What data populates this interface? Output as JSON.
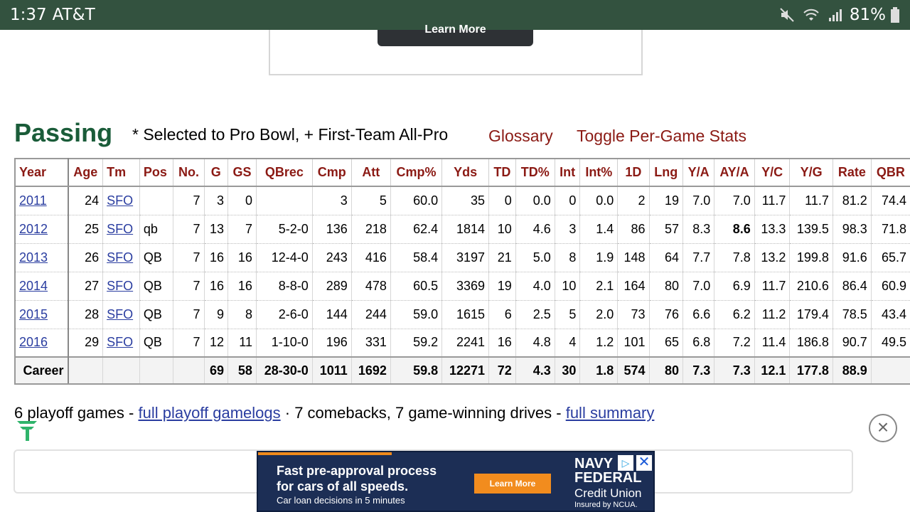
{
  "status_bar": {
    "time": "1:37",
    "carrier": "AT&T",
    "battery": "81%"
  },
  "top_ad": {
    "button_label": "Learn More"
  },
  "section": {
    "title": "Passing",
    "note": "* Selected to Pro Bowl, + First-Team All-Pro",
    "glossary": "Glossary",
    "toggle": "Toggle Per-Game Stats"
  },
  "table": {
    "headers": [
      "Year",
      "Age",
      "Tm",
      "Pos",
      "No.",
      "G",
      "GS",
      "QBrec",
      "Cmp",
      "Att",
      "Cmp%",
      "Yds",
      "TD",
      "TD%",
      "Int",
      "Int%",
      "1D",
      "Lng",
      "Y/A",
      "AY/A",
      "Y/C",
      "Y/G",
      "Rate",
      "QBR"
    ],
    "rows": [
      [
        "2011",
        "24",
        "SFO",
        "",
        "7",
        "3",
        "0",
        "",
        "3",
        "5",
        "60.0",
        "35",
        "0",
        "0.0",
        "0",
        "0.0",
        "2",
        "19",
        "7.0",
        "7.0",
        "11.7",
        "11.7",
        "81.2",
        "74.4"
      ],
      [
        "2012",
        "25",
        "SFO",
        "qb",
        "7",
        "13",
        "7",
        "5-2-0",
        "136",
        "218",
        "62.4",
        "1814",
        "10",
        "4.6",
        "3",
        "1.4",
        "86",
        "57",
        "8.3",
        "8.6",
        "13.3",
        "139.5",
        "98.3",
        "71.8"
      ],
      [
        "2013",
        "26",
        "SFO",
        "QB",
        "7",
        "16",
        "16",
        "12-4-0",
        "243",
        "416",
        "58.4",
        "3197",
        "21",
        "5.0",
        "8",
        "1.9",
        "148",
        "64",
        "7.7",
        "7.8",
        "13.2",
        "199.8",
        "91.6",
        "65.7"
      ],
      [
        "2014",
        "27",
        "SFO",
        "QB",
        "7",
        "16",
        "16",
        "8-8-0",
        "289",
        "478",
        "60.5",
        "3369",
        "19",
        "4.0",
        "10",
        "2.1",
        "164",
        "80",
        "7.0",
        "6.9",
        "11.7",
        "210.6",
        "86.4",
        "60.9"
      ],
      [
        "2015",
        "28",
        "SFO",
        "QB",
        "7",
        "9",
        "8",
        "2-6-0",
        "144",
        "244",
        "59.0",
        "1615",
        "6",
        "2.5",
        "5",
        "2.0",
        "73",
        "76",
        "6.6",
        "6.2",
        "11.2",
        "179.4",
        "78.5",
        "43.4"
      ],
      [
        "2016",
        "29",
        "SFO",
        "QB",
        "7",
        "12",
        "11",
        "1-10-0",
        "196",
        "331",
        "59.2",
        "2241",
        "16",
        "4.8",
        "4",
        "1.2",
        "101",
        "65",
        "6.8",
        "7.2",
        "11.4",
        "186.8",
        "90.7",
        "49.5"
      ]
    ],
    "career": [
      "Career",
      "",
      "",
      "",
      "",
      "69",
      "58",
      "28-30-0",
      "1011",
      "1692",
      "59.8",
      "12271",
      "72",
      "4.3",
      "30",
      "1.8",
      "574",
      "80",
      "7.3",
      "7.3",
      "12.1",
      "177.8",
      "88.9",
      ""
    ]
  },
  "summary": {
    "text1": "6 playoff games - ",
    "link1": "full playoff gamelogs",
    "text2": " · 7 comebacks, 7 game-winning drives - ",
    "link2": "full summary"
  },
  "bottom_ad": {
    "headline1": "Fast pre-approval process",
    "headline2": "for cars of all speeds.",
    "sub": "Car loan decisions in 5 minutes",
    "cta": "Learn More",
    "brand1": "NAVY",
    "brand2": "FEDERAL",
    "brand3": "Credit Union",
    "ncua": "Insured by NCUA."
  }
}
